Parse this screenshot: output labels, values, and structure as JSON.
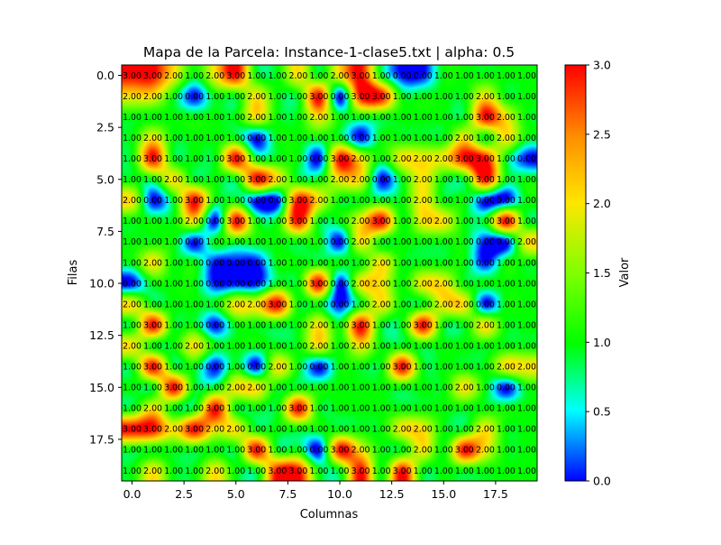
{
  "chart_data": {
    "type": "heatmap",
    "title": "Mapa de la Parcela: Instance-1-clase5.txt | alpha: 0.5",
    "xlabel": "Columnas",
    "ylabel": "Filas",
    "colorbar_label": "Valor",
    "colormap": "hsv",
    "interpolation": "bicubic",
    "value_range": [
      0,
      3
    ],
    "xlim": [
      -0.5,
      19.5
    ],
    "ylim": [
      19.5,
      -0.5
    ],
    "x_ticks": [
      0,
      2.5,
      5,
      7.5,
      10,
      12.5,
      15,
      17.5
    ],
    "x_tick_labels": [
      "0.0",
      "2.5",
      "5.0",
      "7.5",
      "10.0",
      "12.5",
      "15.0",
      "17.5"
    ],
    "y_ticks": [
      0,
      2.5,
      5,
      7.5,
      10,
      12.5,
      15,
      17.5
    ],
    "y_tick_labels": [
      "0.0",
      "2.5",
      "5.0",
      "7.5",
      "10.0",
      "12.5",
      "15.0",
      "17.5"
    ],
    "colorbar_ticks": [
      0,
      0.5,
      1,
      1.5,
      2,
      2.5,
      3
    ],
    "colorbar_tick_labels": [
      "0.0",
      "0.5",
      "1.0",
      "1.5",
      "2.0",
      "2.5",
      "3.0"
    ],
    "cell_label_format": "2 decimals",
    "grid": false,
    "values": [
      [
        3,
        3,
        2,
        1,
        2,
        3,
        1,
        1,
        2,
        1,
        2,
        3,
        1,
        0,
        0,
        1,
        1,
        1,
        1,
        1
      ],
      [
        2,
        2,
        1,
        0,
        1,
        1,
        2,
        1,
        1,
        3,
        0,
        3,
        3,
        1,
        1,
        1,
        1,
        2,
        1,
        1
      ],
      [
        1,
        1,
        1,
        1,
        1,
        1,
        2,
        1,
        1,
        2,
        1,
        1,
        1,
        1,
        1,
        1,
        1,
        3,
        2,
        1
      ],
      [
        1,
        2,
        1,
        1,
        1,
        1,
        0,
        1,
        1,
        1,
        1,
        0,
        1,
        1,
        1,
        1,
        2,
        1,
        2,
        1
      ],
      [
        1,
        3,
        1,
        1,
        1,
        3,
        1,
        1,
        1,
        0,
        3,
        2,
        1,
        2,
        2,
        2,
        3,
        3,
        1,
        0
      ],
      [
        1,
        1,
        2,
        1,
        1,
        1,
        3,
        2,
        1,
        1,
        2,
        2,
        0,
        1,
        2,
        1,
        1,
        3,
        1,
        1
      ],
      [
        2,
        0,
        1,
        3,
        1,
        1,
        0,
        0,
        3,
        2,
        1,
        1,
        1,
        1,
        2,
        1,
        1,
        0,
        0,
        1
      ],
      [
        1,
        1,
        1,
        2,
        0,
        3,
        1,
        1,
        3,
        1,
        1,
        2,
        3,
        1,
        2,
        2,
        1,
        1,
        3,
        1
      ],
      [
        1,
        1,
        1,
        0,
        1,
        1,
        1,
        1,
        1,
        1,
        0,
        2,
        1,
        1,
        1,
        1,
        1,
        0,
        0,
        2
      ],
      [
        1,
        2,
        1,
        1,
        0,
        0,
        0,
        1,
        1,
        1,
        1,
        1,
        2,
        1,
        1,
        1,
        1,
        0,
        1,
        1
      ],
      [
        0,
        1,
        1,
        1,
        0,
        0,
        0,
        1,
        1,
        3,
        0,
        2,
        2,
        1,
        2,
        2,
        1,
        1,
        1,
        1
      ],
      [
        2,
        1,
        1,
        1,
        1,
        2,
        2,
        3,
        1,
        1,
        0,
        1,
        2,
        1,
        1,
        2,
        2,
        0,
        1,
        1
      ],
      [
        1,
        3,
        1,
        1,
        0,
        1,
        1,
        1,
        1,
        2,
        1,
        3,
        1,
        1,
        3,
        1,
        1,
        2,
        1,
        1
      ],
      [
        2,
        1,
        1,
        2,
        1,
        1,
        1,
        1,
        1,
        2,
        1,
        2,
        1,
        1,
        1,
        1,
        1,
        1,
        1,
        1
      ],
      [
        1,
        3,
        1,
        1,
        0,
        1,
        0,
        2,
        1,
        0,
        1,
        1,
        1,
        3,
        1,
        1,
        1,
        1,
        2,
        2
      ],
      [
        1,
        1,
        3,
        1,
        1,
        2,
        2,
        1,
        1,
        1,
        1,
        1,
        1,
        1,
        1,
        1,
        2,
        1,
        0,
        1
      ],
      [
        1,
        2,
        1,
        1,
        3,
        1,
        1,
        1,
        3,
        1,
        1,
        1,
        1,
        1,
        1,
        1,
        1,
        1,
        1,
        1
      ],
      [
        3,
        3,
        2,
        3,
        2,
        2,
        1,
        1,
        1,
        1,
        1,
        1,
        1,
        2,
        2,
        1,
        1,
        2,
        1,
        1
      ],
      [
        1,
        1,
        1,
        1,
        1,
        1,
        3,
        1,
        1,
        0,
        3,
        2,
        1,
        1,
        2,
        1,
        3,
        2,
        1,
        1
      ],
      [
        1,
        2,
        1,
        1,
        2,
        1,
        1,
        3,
        3,
        1,
        1,
        3,
        1,
        3,
        1,
        1,
        1,
        1,
        1,
        1
      ]
    ]
  }
}
